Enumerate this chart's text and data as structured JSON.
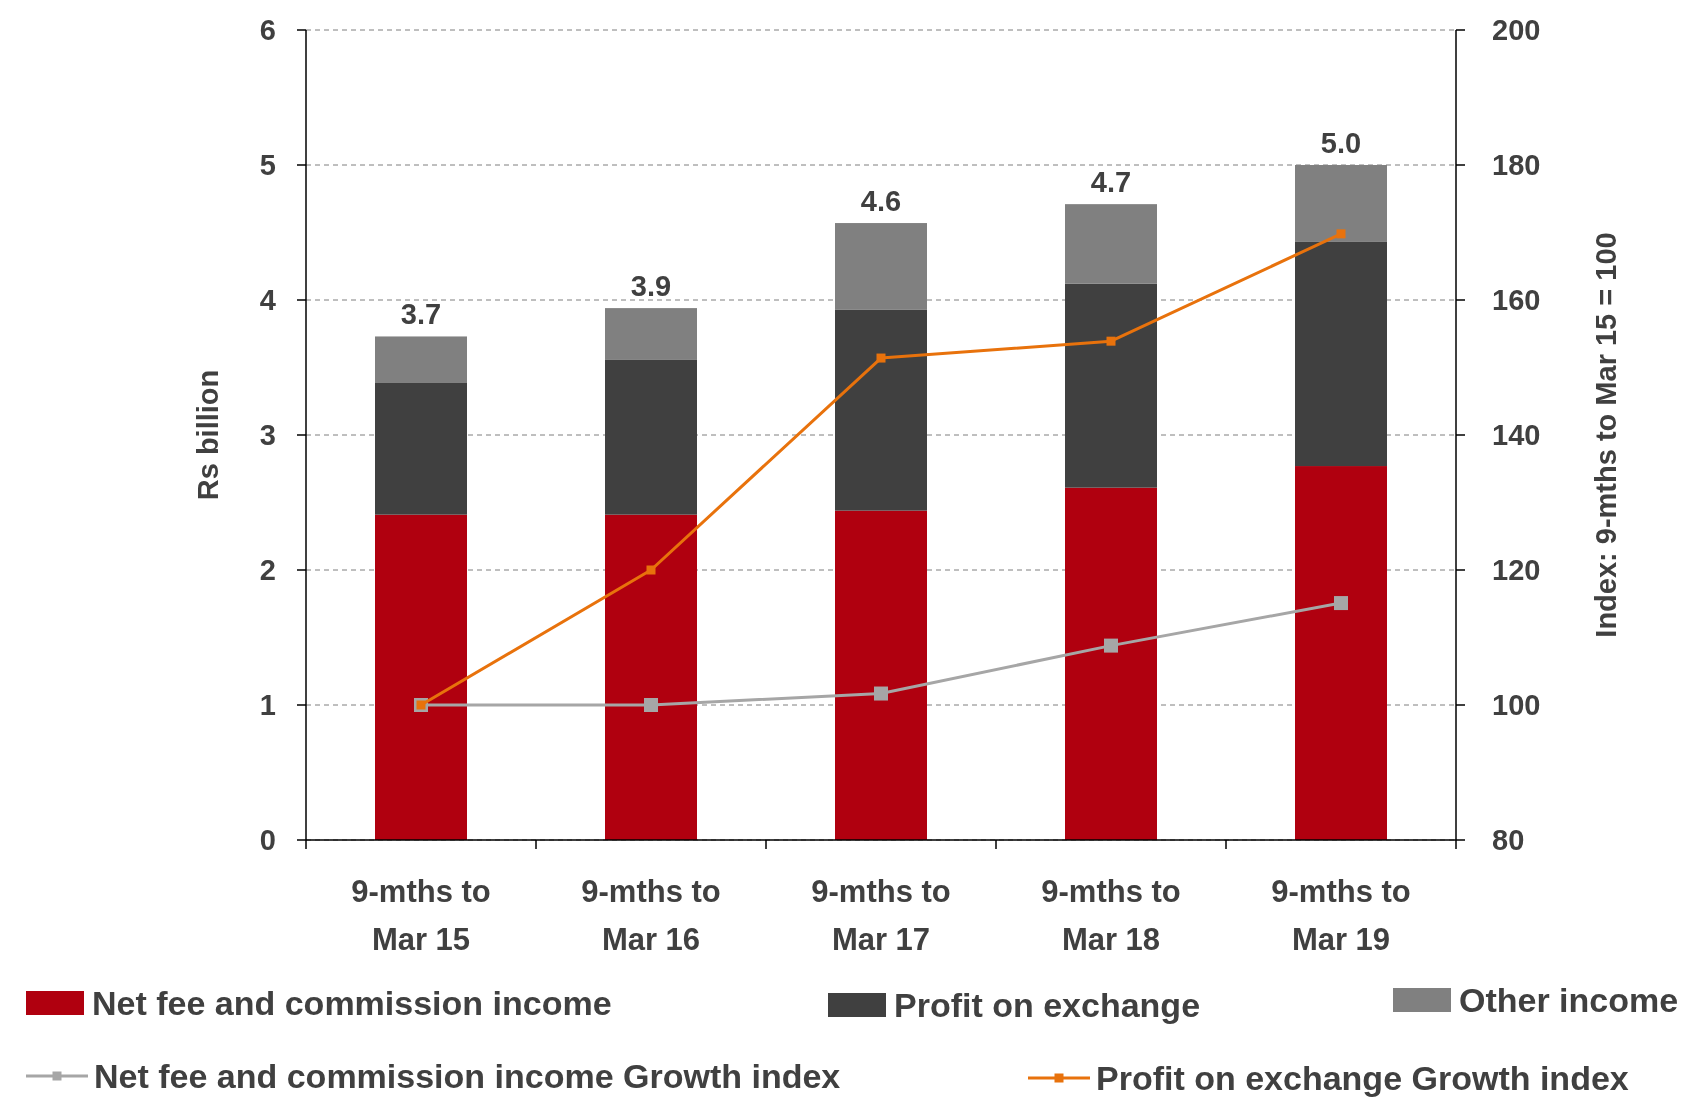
{
  "chart_data": {
    "type": "bar",
    "stacked": true,
    "ylabel": "Rs billion",
    "y2label": "Index: 9-mths to Mar 15 = 100",
    "categories": [
      "9-mths to Mar 15",
      "9-mths to Mar 16",
      "9-mths to Mar 17",
      "9-mths to Mar 18",
      "9-mths to Mar 19"
    ],
    "series": [
      {
        "name": "Net fee and commission income",
        "color": "#b0000f",
        "values": [
          2.41,
          2.41,
          2.44,
          2.61,
          2.77
        ]
      },
      {
        "name": "Profit on exchange",
        "color": "#404040",
        "values": [
          0.98,
          1.15,
          1.49,
          1.51,
          1.66
        ]
      },
      {
        "name": "Other income",
        "color": "#808080",
        "values": [
          0.34,
          0.38,
          0.64,
          0.59,
          0.57
        ]
      },
      {
        "name": "Net fee and commission income Growth index",
        "type": "line",
        "axis": "y2",
        "color": "#a6a6a6",
        "values": [
          100,
          100,
          101.7,
          108.8,
          115.1
        ]
      },
      {
        "name": "Profit on exchange Growth index",
        "type": "line",
        "axis": "y2",
        "color": "#e8720c",
        "values": [
          100,
          120,
          151.4,
          153.9,
          169.8
        ]
      }
    ],
    "totals": [
      "3.7",
      "3.9",
      "4.6",
      "4.7",
      "5.0"
    ],
    "ylim": [
      0,
      6
    ],
    "yticks": [
      0,
      1,
      2,
      3,
      4,
      5,
      6
    ],
    "y2lim": [
      80,
      200
    ],
    "y2ticks": [
      80,
      100,
      120,
      140,
      160,
      180,
      200
    ],
    "grid": "y",
    "legend": "bottom",
    "marker": "square",
    "line_style": "solid"
  }
}
